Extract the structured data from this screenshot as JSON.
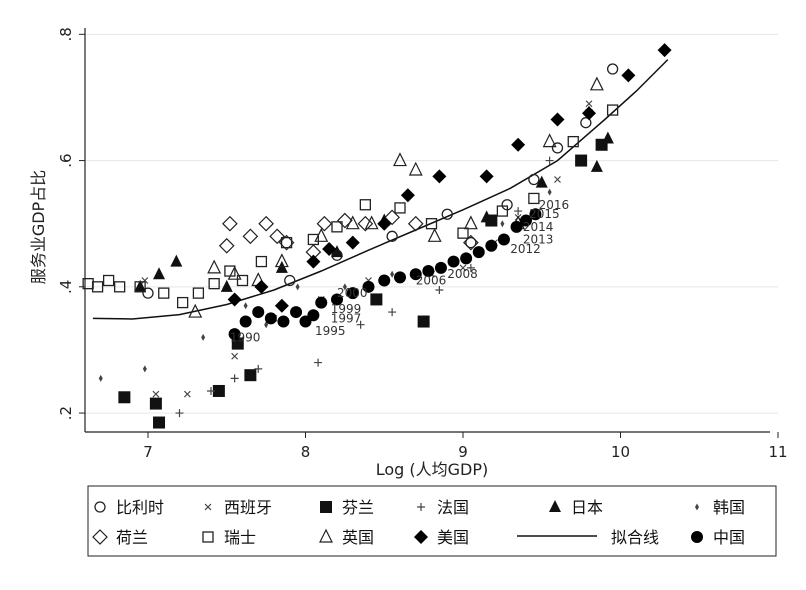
{
  "chart_data": {
    "type": "scatter",
    "xlabel": "Log (人均GDP)",
    "ylabel": "服务业GDP占比",
    "xlim": [
      6.6,
      11.0
    ],
    "ylim": [
      0.17,
      0.81
    ],
    "xticks": [
      7,
      8,
      9,
      10,
      11
    ],
    "yticks": [
      0.2,
      0.4,
      0.6,
      0.8
    ],
    "ytick_labels": [
      ".2",
      ".4",
      ".6",
      ".8"
    ],
    "grid": "horizontal",
    "legend_position": "bottom",
    "series": [
      {
        "name": "比利时",
        "marker": "circle-open",
        "color": "#222222",
        "x": [
          7.0,
          7.9,
          8.2,
          8.55,
          8.9,
          9.05,
          9.28,
          9.45,
          9.6,
          9.78,
          9.95
        ],
        "y": [
          0.39,
          0.41,
          0.45,
          0.48,
          0.515,
          0.47,
          0.53,
          0.57,
          0.62,
          0.66,
          0.745
        ]
      },
      {
        "name": "西班牙",
        "marker": "x",
        "color": "#444444",
        "x": [
          6.98,
          7.05,
          7.25,
          7.55,
          7.8,
          8.1,
          8.4,
          8.8,
          9.0,
          9.2,
          9.35,
          9.6,
          9.8
        ],
        "y": [
          0.41,
          0.23,
          0.23,
          0.29,
          0.35,
          0.38,
          0.41,
          0.42,
          0.43,
          0.47,
          0.51,
          0.57,
          0.69
        ]
      },
      {
        "name": "芬兰",
        "marker": "square-filled",
        "color": "#111111",
        "x": [
          6.85,
          7.05,
          7.07,
          7.45,
          7.57,
          7.65,
          8.45,
          8.75,
          9.18,
          9.75,
          9.88
        ],
        "y": [
          0.225,
          0.215,
          0.185,
          0.235,
          0.31,
          0.26,
          0.38,
          0.345,
          0.505,
          0.6,
          0.625
        ]
      },
      {
        "name": "法国",
        "marker": "plus",
        "color": "#444444",
        "x": [
          7.2,
          7.4,
          7.55,
          7.7,
          8.08,
          8.35,
          8.55,
          8.85,
          9.05,
          9.35,
          9.55,
          9.8
        ],
        "y": [
          0.2,
          0.235,
          0.255,
          0.27,
          0.28,
          0.34,
          0.36,
          0.395,
          0.43,
          0.52,
          0.6,
          0.68
        ]
      },
      {
        "name": "日本",
        "marker": "triangle-filled",
        "color": "#111111",
        "x": [
          6.95,
          7.07,
          7.18,
          7.5,
          7.85,
          8.2,
          8.5,
          9.15,
          9.5,
          9.85,
          9.92
        ],
        "y": [
          0.4,
          0.42,
          0.44,
          0.4,
          0.43,
          0.455,
          0.505,
          0.51,
          0.565,
          0.59,
          0.635
        ]
      },
      {
        "name": "韩国",
        "marker": "diamond-small",
        "color": "#444444",
        "x": [
          6.7,
          6.98,
          7.35,
          7.62,
          7.75,
          7.95,
          8.25,
          8.55,
          8.85,
          9.25,
          9.55
        ],
        "y": [
          0.255,
          0.27,
          0.32,
          0.37,
          0.34,
          0.4,
          0.4,
          0.42,
          0.43,
          0.5,
          0.55
        ]
      },
      {
        "name": "荷兰",
        "marker": "diamond-open",
        "color": "#222222",
        "x": [
          7.5,
          7.52,
          7.65,
          7.75,
          7.82,
          7.88,
          8.05,
          8.12,
          8.25,
          8.38,
          8.55,
          8.7,
          9.05
        ],
        "y": [
          0.465,
          0.5,
          0.48,
          0.5,
          0.48,
          0.47,
          0.455,
          0.5,
          0.505,
          0.5,
          0.51,
          0.5,
          0.47
        ]
      },
      {
        "name": "瑞士",
        "marker": "square-open",
        "color": "#222222",
        "x": [
          6.62,
          6.68,
          6.75,
          6.82,
          6.95,
          7.1,
          7.22,
          7.32,
          7.42,
          7.52,
          7.6,
          7.72,
          7.88,
          8.05,
          8.2,
          8.38,
          8.6,
          8.8,
          9.0,
          9.25,
          9.45,
          9.7,
          9.95
        ],
        "y": [
          0.405,
          0.4,
          0.41,
          0.4,
          0.4,
          0.39,
          0.375,
          0.39,
          0.405,
          0.425,
          0.41,
          0.44,
          0.47,
          0.475,
          0.495,
          0.53,
          0.525,
          0.5,
          0.485,
          0.52,
          0.54,
          0.63,
          0.68
        ]
      },
      {
        "name": "英国",
        "marker": "triangle-open",
        "color": "#222222",
        "x": [
          7.3,
          7.42,
          7.55,
          7.7,
          7.85,
          8.1,
          8.3,
          8.42,
          8.6,
          8.7,
          8.82,
          9.05,
          9.35,
          9.55,
          9.85
        ],
        "y": [
          0.36,
          0.43,
          0.42,
          0.41,
          0.44,
          0.48,
          0.5,
          0.5,
          0.6,
          0.585,
          0.48,
          0.5,
          0.5,
          0.63,
          0.72
        ]
      },
      {
        "name": "美国",
        "marker": "diamond-filled",
        "color": "#000000",
        "x": [
          7.55,
          7.72,
          7.85,
          8.05,
          8.15,
          8.3,
          8.5,
          8.65,
          8.85,
          9.15,
          9.35,
          9.6,
          9.8,
          10.05,
          10.28
        ],
        "y": [
          0.38,
          0.4,
          0.37,
          0.44,
          0.46,
          0.47,
          0.5,
          0.545,
          0.575,
          0.575,
          0.625,
          0.665,
          0.675,
          0.735,
          0.775
        ]
      },
      {
        "name": "中国",
        "marker": "circle-filled",
        "color": "#000000",
        "x": [
          7.55,
          7.62,
          7.7,
          7.78,
          7.86,
          7.94,
          8.0,
          8.05,
          8.1,
          8.2,
          8.3,
          8.4,
          8.5,
          8.6,
          8.7,
          8.78,
          8.86,
          8.94,
          9.02,
          9.1,
          9.18,
          9.26,
          9.34,
          9.4,
          9.46
        ],
        "y": [
          0.325,
          0.345,
          0.36,
          0.35,
          0.345,
          0.36,
          0.345,
          0.355,
          0.375,
          0.38,
          0.39,
          0.4,
          0.41,
          0.415,
          0.42,
          0.425,
          0.43,
          0.44,
          0.445,
          0.455,
          0.465,
          0.475,
          0.495,
          0.505,
          0.515
        ]
      }
    ],
    "fit": {
      "name": "拟合线",
      "x": [
        6.65,
        6.9,
        7.2,
        7.5,
        7.8,
        8.1,
        8.4,
        8.7,
        9.0,
        9.3,
        9.6,
        9.9,
        10.1,
        10.3
      ],
      "y": [
        0.35,
        0.349,
        0.356,
        0.372,
        0.395,
        0.425,
        0.458,
        0.49,
        0.522,
        0.556,
        0.6,
        0.665,
        0.71,
        0.76
      ]
    },
    "annotations": [
      {
        "text": "1990",
        "x": 7.52,
        "y": 0.32
      },
      {
        "text": "1995",
        "x": 8.06,
        "y": 0.33
      },
      {
        "text": "1997",
        "x": 8.16,
        "y": 0.35
      },
      {
        "text": "1999",
        "x": 8.16,
        "y": 0.365
      },
      {
        "text": "2000",
        "x": 8.2,
        "y": 0.39
      },
      {
        "text": "2006",
        "x": 8.7,
        "y": 0.41
      },
      {
        "text": "2008",
        "x": 8.9,
        "y": 0.42
      },
      {
        "text": "2012",
        "x": 9.3,
        "y": 0.46
      },
      {
        "text": "2013",
        "x": 9.38,
        "y": 0.475
      },
      {
        "text": "2014",
        "x": 9.38,
        "y": 0.495
      },
      {
        "text": "2015",
        "x": 9.42,
        "y": 0.515
      },
      {
        "text": "2016",
        "x": 9.48,
        "y": 0.53
      }
    ]
  },
  "legend_rows": [
    [
      "比利时",
      "西班牙",
      "芬兰",
      "法国",
      "日本",
      "韩国"
    ],
    [
      "荷兰",
      "瑞士",
      "英国",
      "美国",
      "拟合线",
      "中国"
    ]
  ]
}
